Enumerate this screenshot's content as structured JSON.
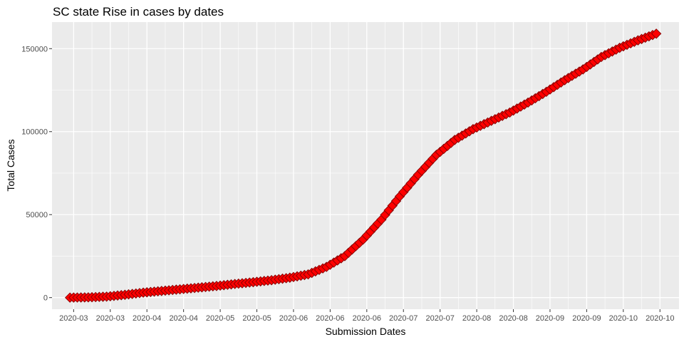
{
  "chart_data": {
    "type": "scatter",
    "title": "SC state Rise in cases by dates",
    "xlabel": "Submission Dates",
    "ylabel": "Total Cases",
    "x_tick_labels": [
      "2020-03",
      "2020-03",
      "2020-04",
      "2020-04",
      "2020-05",
      "2020-05",
      "2020-06",
      "2020-06",
      "2020-06",
      "2020-07",
      "2020-07",
      "2020-08",
      "2020-08",
      "2020-09",
      "2020-09",
      "2020-10",
      "2020-10"
    ],
    "x_tick_days": [
      1,
      11,
      21,
      31,
      41,
      51,
      61,
      71,
      81,
      91,
      101,
      111,
      121,
      131,
      141,
      151,
      161
    ],
    "ylim": [
      -7000,
      166000
    ],
    "y_ticks": [
      0,
      50000,
      100000,
      150000
    ],
    "y_tick_labels": [
      "0",
      "50000",
      "100000",
      "150000"
    ],
    "x_range_days": [
      -4.9,
      166.2
    ],
    "series": [
      {
        "name": "Total Cases",
        "marker": "diamond",
        "color": "#ff0000",
        "edge_color": "#8b0000",
        "days": [
          0,
          5,
          10,
          15,
          20,
          25,
          30,
          35,
          40,
          45,
          50,
          55,
          60,
          65,
          70,
          75,
          80,
          85,
          90,
          95,
          100,
          105,
          110,
          115,
          120,
          125,
          130,
          135,
          140,
          145,
          150,
          155,
          160
        ],
        "values": [
          0,
          150,
          600,
          1700,
          3000,
          4000,
          5000,
          6000,
          7000,
          8200,
          9300,
          10500,
          12000,
          14000,
          18500,
          25000,
          35000,
          47000,
          61000,
          74000,
          86000,
          95000,
          101500,
          106500,
          111500,
          117500,
          124000,
          131000,
          137500,
          145000,
          150500,
          155000,
          159000
        ]
      }
    ]
  },
  "colors": {
    "panel_background": "#ebebeb",
    "grid_major": "#ffffff",
    "point_fill": "#ff0000",
    "point_edge": "#8b0000"
  }
}
